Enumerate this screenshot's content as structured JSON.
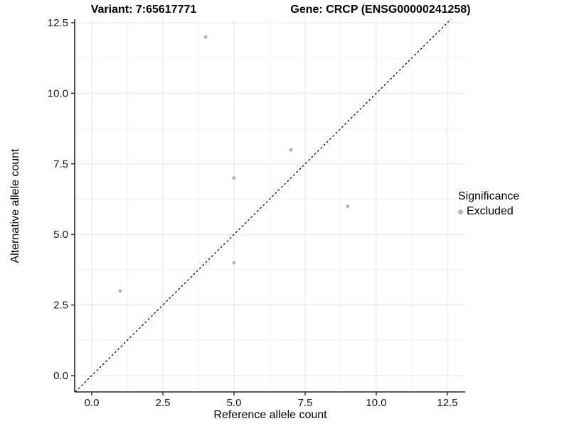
{
  "header": {
    "left_title": "Variant: 7:65617771",
    "right_title": "Gene: CRCP (ENSG00000241258)"
  },
  "legend": {
    "title": "Significance",
    "items": [
      {
        "label": "Excluded",
        "color": "#b5b5b5"
      }
    ]
  },
  "chart_data": {
    "type": "scatter",
    "title": "Variant: 7:65617771 | Gene: CRCP (ENSG00000241258)",
    "xlabel": "Reference allele count",
    "ylabel": "Alternative allele count",
    "x_ticks": {
      "values": [
        0,
        2.5,
        5,
        7.5,
        10,
        12.5
      ],
      "labels": [
        "0.0",
        "2.5",
        "5.0",
        "7.5",
        "10.0",
        "12.5"
      ]
    },
    "y_ticks": {
      "values": [
        0,
        2.5,
        5,
        7.5,
        10,
        12.5
      ],
      "labels": [
        "0.0",
        "2.5",
        "5.0",
        "7.5",
        "10.0",
        "12.5"
      ]
    },
    "minor_ticks": [
      1.25,
      3.75,
      6.25,
      8.75,
      11.25
    ],
    "xlim": [
      -0.6,
      13.125
    ],
    "ylim": [
      -0.578,
      12.626
    ],
    "grid": true,
    "legend_position": "right",
    "series": [
      {
        "name": "Excluded",
        "color": "#b5b5b5",
        "points": [
          [
            4,
            12
          ],
          [
            7,
            8
          ],
          [
            5,
            7
          ],
          [
            9,
            6
          ],
          [
            5,
            4
          ],
          [
            1,
            3
          ]
        ]
      }
    ],
    "reference_line": {
      "type": "identity y=x",
      "style": "dashed",
      "color": "#000000"
    }
  },
  "style": {
    "major_grid": "#e4e4e4",
    "minor_grid": "#f1f1f1",
    "axis_color": "#262626",
    "tick_label_color": "#1a1a1a",
    "point_radius": 2.5
  }
}
